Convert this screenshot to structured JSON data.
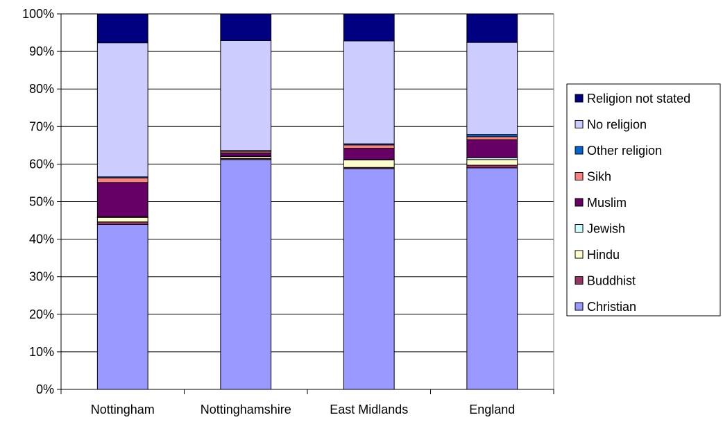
{
  "chart_data": {
    "type": "bar",
    "stacked": true,
    "percent_stacked": true,
    "title": "",
    "xlabel": "",
    "ylabel": "",
    "ylim": [
      0,
      100
    ],
    "y_ticks": [
      "0%",
      "10%",
      "20%",
      "30%",
      "40%",
      "50%",
      "60%",
      "70%",
      "80%",
      "90%",
      "100%"
    ],
    "grid": true,
    "legend_position": "right",
    "categories": [
      "Nottingham",
      "Nottinghamshire",
      "East Midlands",
      "England"
    ],
    "series": [
      {
        "name": "Christian",
        "color": "#9999FF",
        "values": [
          43.9,
          61.2,
          58.8,
          59.0
        ]
      },
      {
        "name": "Buddhist",
        "color": "#993366",
        "values": [
          0.7,
          0.3,
          0.3,
          0.7
        ]
      },
      {
        "name": "Hindu",
        "color": "#FFFFCC",
        "values": [
          1.2,
          0.5,
          2.0,
          1.5
        ]
      },
      {
        "name": "Jewish",
        "color": "#CCFFFF",
        "values": [
          0.2,
          0.1,
          0.1,
          0.5
        ]
      },
      {
        "name": "Muslim",
        "color": "#660066",
        "values": [
          9.1,
          0.9,
          3.0,
          4.8
        ]
      },
      {
        "name": "Sikh",
        "color": "#FF8080",
        "values": [
          1.2,
          0.4,
          0.9,
          0.8
        ]
      },
      {
        "name": "Other religion",
        "color": "#0066CC",
        "values": [
          0.3,
          0.2,
          0.3,
          0.6
        ]
      },
      {
        "name": "No religion",
        "color": "#CCCCFF",
        "values": [
          35.7,
          29.3,
          27.4,
          24.5
        ]
      },
      {
        "name": "Religion not stated",
        "color": "#000080",
        "values": [
          7.7,
          7.1,
          7.2,
          7.6
        ]
      }
    ],
    "legend_order": [
      "Religion not stated",
      "No religion",
      "Other religion",
      "Sikh",
      "Muslim",
      "Jewish",
      "Hindu",
      "Buddhist",
      "Christian"
    ]
  }
}
